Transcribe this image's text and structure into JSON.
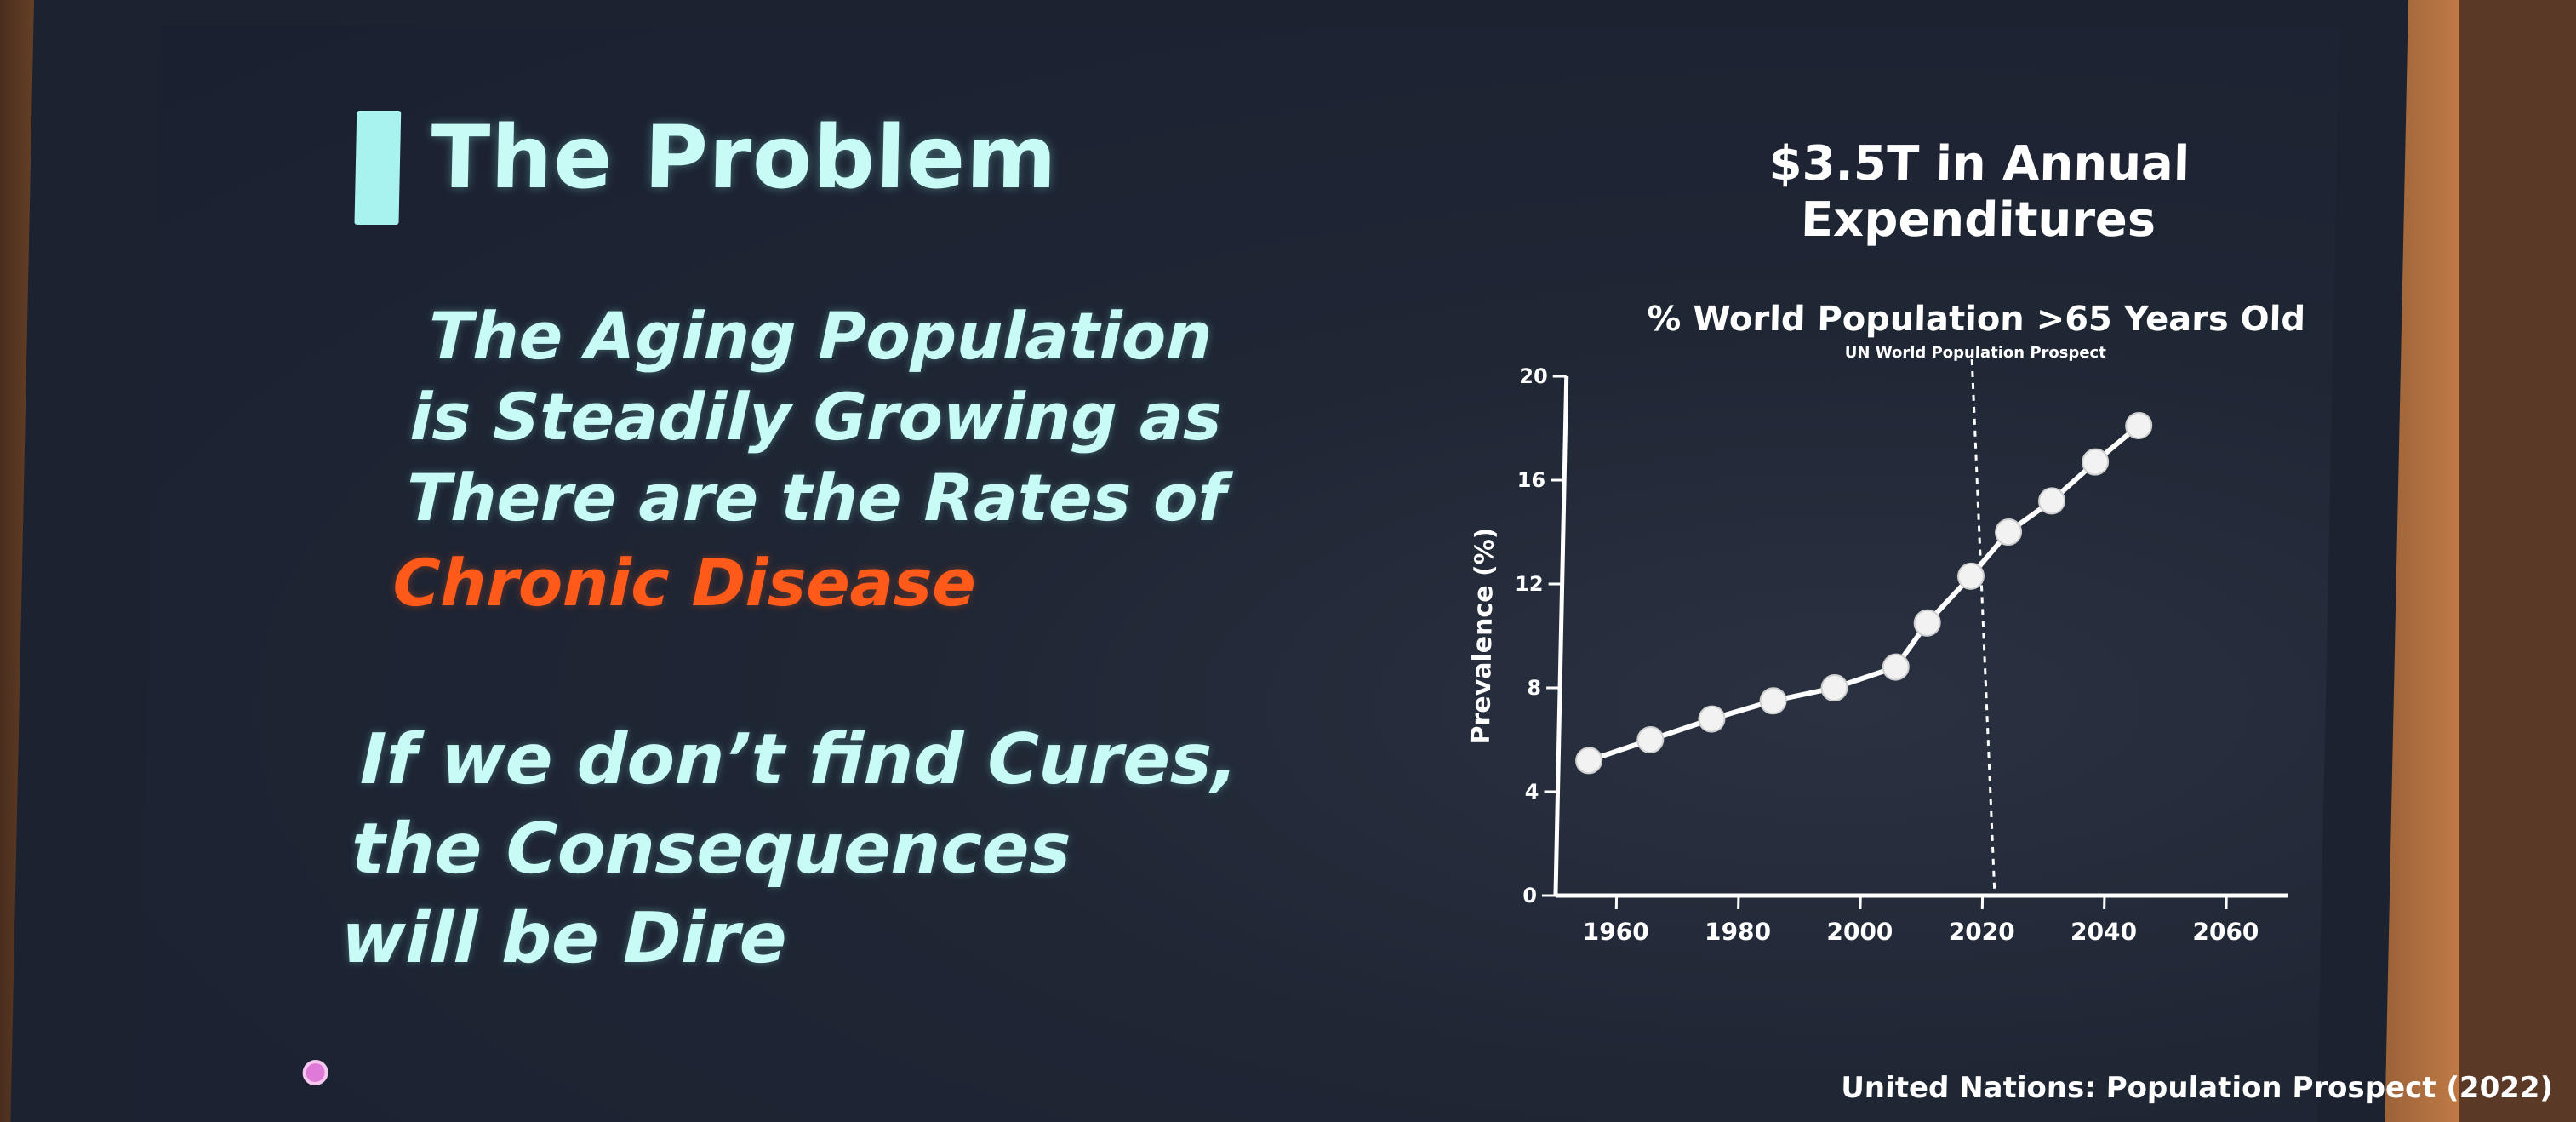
{
  "slide": {
    "title": "The Problem",
    "body_lines": [
      "The Aging Population",
      "is Steadily Growing as",
      "There are the Rates of",
      "Chronic Disease",
      "If we don’t find Cures,",
      "the Consequences",
      "will be Dire"
    ],
    "headline_line1": "$3.5T in Annual",
    "headline_line2": "Expenditures",
    "source": "United Nations: Population Prospect (2022)"
  },
  "colors": {
    "accent": "#c9fbf6",
    "highlight": "#ff5a1a",
    "background": "#1f2634",
    "line": "#ffffff",
    "marker": "#f2f2f2"
  },
  "chart_data": {
    "type": "line",
    "title": "% World Population >65 Years Old",
    "subtitle": "UN World Population Prospect",
    "xlabel": "",
    "ylabel": "Prevalence (%)",
    "xlim": [
      1950,
      2070
    ],
    "ylim": [
      0,
      20
    ],
    "xticks": [
      1960,
      1980,
      2000,
      2020,
      2040,
      2060
    ],
    "yticks": [
      0,
      4,
      8,
      12,
      16,
      20
    ],
    "grid": false,
    "legend": "none",
    "divider_x": 2022,
    "series": [
      {
        "x": [
          1955,
          1965,
          1975,
          1985,
          1995,
          2005,
          2010,
          2017,
          2023,
          2030,
          2037,
          2044
        ],
        "y": [
          5.2,
          6.0,
          6.8,
          7.5,
          8.0,
          8.8,
          10.5,
          12.3,
          14.0,
          15.2,
          16.7,
          18.1
        ]
      }
    ]
  }
}
